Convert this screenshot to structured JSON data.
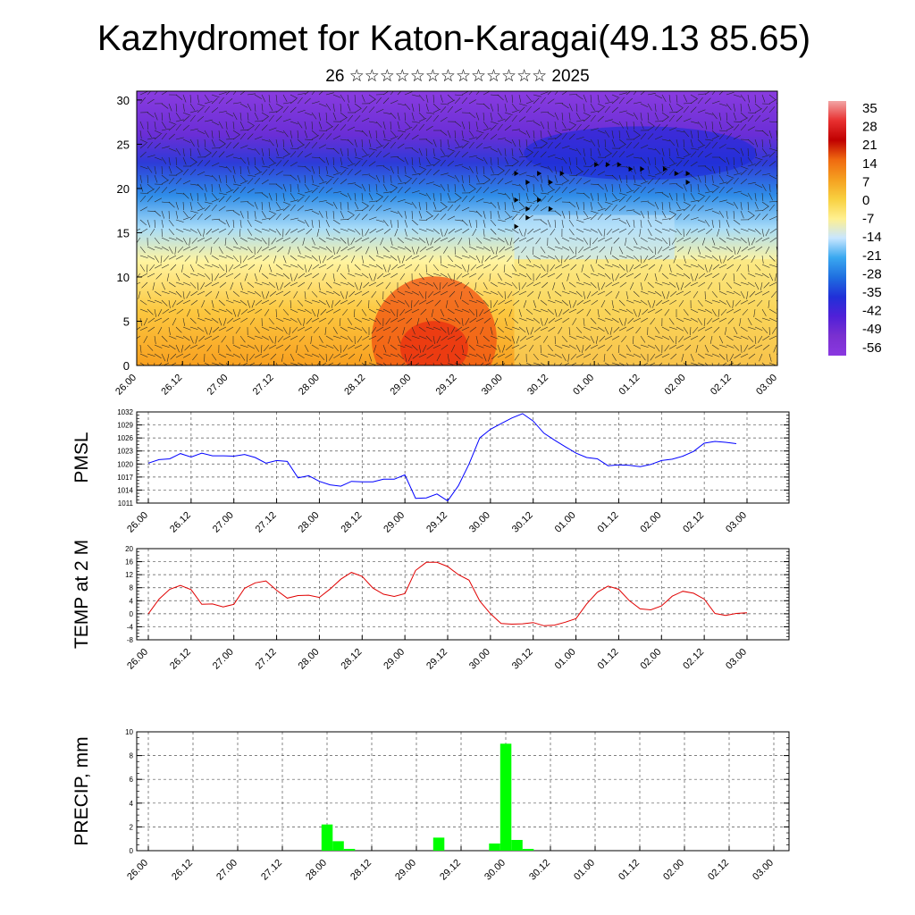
{
  "title": "Kazhydromet for Katon-Karagai(49.13 85.65)",
  "subtitle": "26 ☆☆☆☆☆☆☆☆☆☆☆☆☆ 2025",
  "time_labels": [
    "26.00",
    "26.12",
    "27.00",
    "27.12",
    "28.00",
    "28.12",
    "29.00",
    "29.12",
    "30.00",
    "30.12",
    "01.00",
    "01.12",
    "02.00",
    "02.12",
    "03.00"
  ],
  "colorbar": {
    "labels": [
      "35",
      "28",
      "21",
      "14",
      "7",
      "0",
      "-7",
      "-14",
      "-21",
      "-28",
      "-35",
      "-42",
      "-49",
      "-56"
    ],
    "colors": [
      "#f2a5a5",
      "#e83030",
      "#c00000",
      "#f06a10",
      "#f5a020",
      "#f8d040",
      "#fff090",
      "#c8e6ff",
      "#3aa8f0",
      "#1f6fe0",
      "#2030d8",
      "#5020d8",
      "#7a30d0",
      "#8a38e0"
    ]
  },
  "chart_data": [
    {
      "type": "heatmap",
      "title": "",
      "xlabel": "",
      "ylabel": "",
      "ylim": [
        0,
        31
      ],
      "yticks": [
        0,
        5,
        10,
        15,
        20,
        25,
        30
      ],
      "note_overlay": "wind barbs",
      "categories": [
        "26.00",
        "26.12",
        "27.00",
        "27.12",
        "28.00",
        "28.12",
        "29.00",
        "29.12",
        "30.00",
        "30.12",
        "01.00",
        "01.12",
        "02.00",
        "02.12",
        "03.00"
      ]
    },
    {
      "type": "line",
      "ylabel": "PMSL",
      "ylim": [
        1011,
        1032
      ],
      "yticks": [
        1011,
        1014,
        1017,
        1020,
        1023,
        1026,
        1029,
        1032
      ],
      "color": "#0000ff",
      "x_step_hours": 3,
      "values": [
        1020.2,
        1021.0,
        1021.2,
        1022.4,
        1021.6,
        1022.5,
        1021.9,
        1021.9,
        1021.8,
        1022.2,
        1021.5,
        1020.2,
        1020.8,
        1020.6,
        1016.8,
        1017.3,
        1016.0,
        1015.2,
        1014.9,
        1016.0,
        1015.9,
        1015.9,
        1016.5,
        1016.5,
        1017.5,
        1012.1,
        1012.2,
        1013.1,
        1011.5,
        1015.0,
        1020.0,
        1026.0,
        1028.0,
        1029.3,
        1030.6,
        1031.6,
        1029.9,
        1027.1,
        1025.5,
        1024.0,
        1022.5,
        1021.5,
        1021.2,
        1019.6,
        1019.8,
        1019.7,
        1019.4,
        1019.9,
        1020.8,
        1021.1,
        1021.8,
        1022.9,
        1024.8,
        1025.2,
        1025.0,
        1024.7
      ]
    },
    {
      "type": "line",
      "ylabel": "TEMP at 2 M",
      "ylim": [
        -8,
        20
      ],
      "yticks": [
        -8,
        -4,
        0,
        4,
        8,
        12,
        16,
        20
      ],
      "color": "#e00000",
      "x_step_hours": 3,
      "values": [
        0.0,
        4.5,
        7.5,
        8.7,
        7.4,
        2.9,
        3.0,
        2.1,
        2.9,
        7.8,
        9.5,
        10.1,
        7.2,
        4.8,
        5.6,
        5.7,
        5.0,
        7.6,
        10.6,
        12.7,
        11.5,
        7.9,
        6.0,
        5.3,
        6.2,
        13.3,
        15.8,
        15.8,
        14.5,
        12.0,
        10.3,
        3.9,
        0.0,
        -3.0,
        -3.2,
        -3.1,
        -2.7,
        -3.7,
        -3.5,
        -2.6,
        -1.5,
        3.0,
        6.6,
        8.5,
        7.5,
        4.0,
        1.5,
        1.2,
        2.4,
        5.4,
        6.9,
        6.3,
        4.5,
        0.1,
        -0.5,
        0.1,
        0.3
      ]
    },
    {
      "type": "bar",
      "ylabel": "PRECIP, mm",
      "ylim": [
        0,
        10
      ],
      "yticks": [
        0,
        2,
        4,
        6,
        8,
        10
      ],
      "color": "#00ff00",
      "bars": [
        {
          "time_index": 16,
          "value": 2.2
        },
        {
          "time_index": 17,
          "value": 0.8
        },
        {
          "time_index": 18,
          "value": 0.15
        },
        {
          "time_index": 26,
          "value": 1.1
        },
        {
          "time_index": 31,
          "value": 0.6
        },
        {
          "time_index": 32,
          "value": 9.0
        },
        {
          "time_index": 33,
          "value": 0.9
        },
        {
          "time_index": 34,
          "value": 0.15
        }
      ]
    }
  ]
}
